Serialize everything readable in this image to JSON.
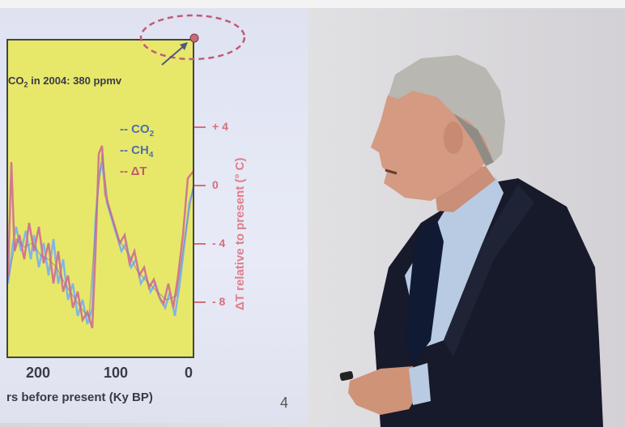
{
  "slide": {
    "co2_note_prefix": "CO",
    "co2_note_sub": "2",
    "co2_note_suffix": " in 2004: 380 ppmv",
    "legend": [
      {
        "label": "-- CO",
        "sub": "2",
        "color": "#4e6fb0"
      },
      {
        "label": "-- CH",
        "sub": "4",
        "color": "#4e6fb0"
      },
      {
        "label": "-- ΔT",
        "sub": "",
        "color": "#c15a6a"
      }
    ],
    "y_ticks": [
      "+ 4",
      "0",
      "- 4",
      "- 8"
    ],
    "y_axis_label": "ΔT relative to present (° C)",
    "x_ticks": [
      "200",
      "100",
      "0"
    ],
    "x_axis_label": "rs before present (Ky BP)",
    "slide_number": "4"
  },
  "colors": {
    "plot_bg": "#e7e86a",
    "co2_line": "#7fb6e6",
    "dt_line": "#d07a8e",
    "annotation": "#c25a78"
  }
}
